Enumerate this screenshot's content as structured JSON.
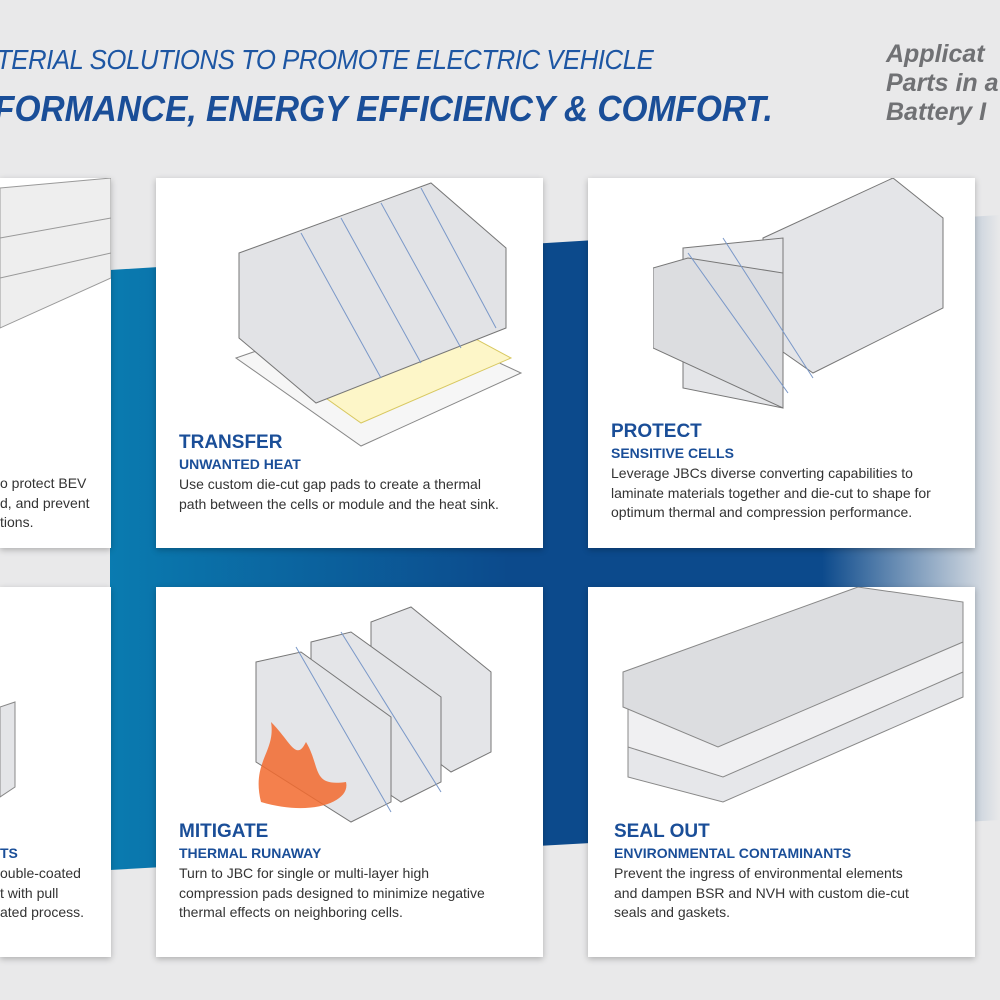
{
  "header": {
    "line1": "TERIAL SOLUTIONS TO PROMOTE ELECTRIC VEHICLE",
    "line2": "FORMANCE, ENERGY EFFICIENCY & COMFORT."
  },
  "side": {
    "lines": [
      "Applicat",
      "Parts in a",
      "Battery I"
    ]
  },
  "colors": {
    "brand_blue": "#1a4e98",
    "band_blue": "#0c4a8c",
    "background": "#e9e9ea"
  },
  "cards": [
    {
      "id": "left-top",
      "body": [
        "o protect BEV",
        "d, and prevent",
        "tions."
      ]
    },
    {
      "id": "transfer",
      "title": "TRANSFER",
      "subtitle": "UNWANTED HEAT",
      "body": [
        "Use custom die-cut gap pads to create a thermal",
        "path between the cells or module and the heat sink."
      ]
    },
    {
      "id": "protect",
      "title": "PROTECT",
      "subtitle": "SENSITIVE CELLS",
      "body": [
        "Leverage JBCs diverse converting capabilities to",
        "laminate materials together and die-cut to shape for",
        "optimum thermal and compression performance."
      ]
    },
    {
      "id": "left-bottom",
      "subtitle": "TS",
      "body": [
        "ouble-coated",
        "t with pull",
        "ated process."
      ]
    },
    {
      "id": "mitigate",
      "title": "MITIGATE",
      "subtitle": "THERMAL RUNAWAY",
      "body": [
        "Turn to JBC for single or multi-layer high",
        "compression pads designed to minimize negative",
        "thermal effects on neighboring cells."
      ]
    },
    {
      "id": "seal",
      "title": "SEAL OUT",
      "subtitle": "ENVIRONMENTAL CONTAMINANTS",
      "body": [
        "Prevent the ingress of environmental elements",
        "and dampen BSR and NVH with custom die-cut",
        "seals and gaskets."
      ]
    }
  ]
}
